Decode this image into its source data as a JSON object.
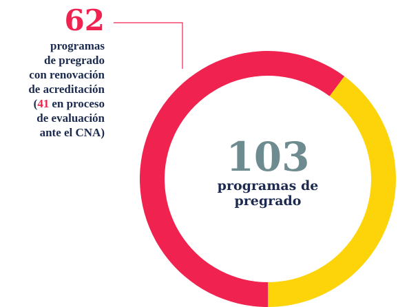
{
  "chart_data": {
    "type": "donut",
    "values": [
      62,
      41
    ],
    "colors": [
      "#f0224f",
      "#fdd30a"
    ],
    "center_value": 103,
    "center_label": [
      "programas de",
      "pregrado"
    ],
    "annotation": {
      "value": 62,
      "lines": [
        "programas",
        "de pregrado",
        "con renovación",
        "de acreditación"
      ],
      "open": "(",
      "second_value": 41,
      "second_text": "en proceso",
      "tail": [
        "de evaluación",
        "ante el CNA)"
      ]
    }
  }
}
